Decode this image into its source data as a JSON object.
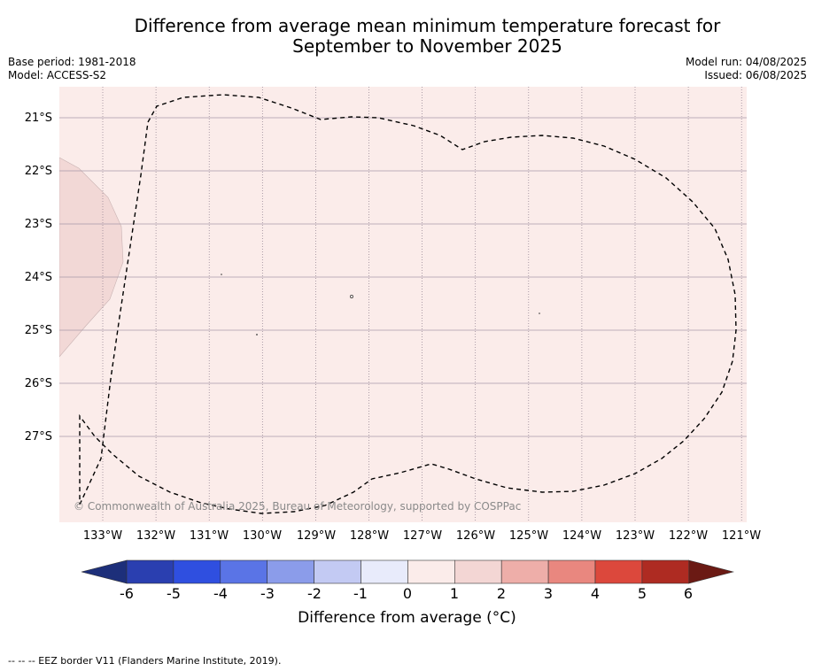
{
  "title_line1": "Difference from average mean minimum temperature forecast for",
  "title_line2": "September to November 2025",
  "base_period": "Base period: 1981-2018",
  "model": "Model: ACCESS-S2",
  "model_run": "Model run: 04/08/2025",
  "issued": "Issued: 06/08/2025",
  "map": {
    "background_color": "#fbecea",
    "land_color": "#f2d8d6",
    "eez_border_style": "dashed",
    "lat_labels": [
      "21°S",
      "22°S",
      "23°S",
      "24°S",
      "25°S",
      "26°S",
      "27°S"
    ],
    "lon_labels": [
      "133°W",
      "132°W",
      "131°W",
      "130°W",
      "129°W",
      "128°W",
      "127°W",
      "126°W",
      "125°W",
      "124°W",
      "123°W",
      "122°W",
      "121°W"
    ],
    "copyright": "© Commonwealth of Australia 2025, Bureau of Meteorology, supported by COSPPac"
  },
  "colorbar": {
    "ticks": [
      "-6",
      "-5",
      "-4",
      "-3",
      "-2",
      "-1",
      "0",
      "1",
      "2",
      "3",
      "4",
      "5",
      "6"
    ],
    "colors": [
      "#1d2f7a",
      "#2a3fb0",
      "#2f4fe0",
      "#5a74e6",
      "#8b9cea",
      "#c3caf3",
      "#e8ebfb",
      "#fbecea",
      "#f3d6d4",
      "#eeaea9",
      "#e9877f",
      "#dc483c",
      "#ae2b22",
      "#6b1a14"
    ],
    "label": "Difference from average (°C)"
  },
  "footnote": "-- -- -- EEZ border V11 (Flanders Marine Institute, 2019)."
}
